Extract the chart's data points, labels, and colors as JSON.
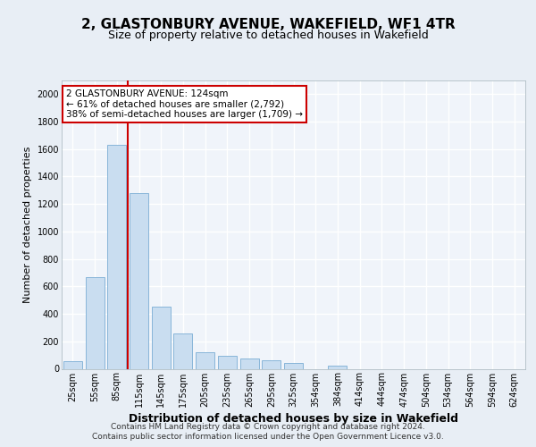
{
  "title": "2, GLASTONBURY AVENUE, WAKEFIELD, WF1 4TR",
  "subtitle": "Size of property relative to detached houses in Wakefield",
  "xlabel": "Distribution of detached houses by size in Wakefield",
  "ylabel": "Number of detached properties",
  "categories": [
    "25sqm",
    "55sqm",
    "85sqm",
    "115sqm",
    "145sqm",
    "175sqm",
    "205sqm",
    "235sqm",
    "265sqm",
    "295sqm",
    "325sqm",
    "354sqm",
    "384sqm",
    "414sqm",
    "444sqm",
    "474sqm",
    "504sqm",
    "534sqm",
    "564sqm",
    "594sqm",
    "624sqm"
  ],
  "values": [
    55,
    670,
    1630,
    1280,
    450,
    255,
    120,
    95,
    75,
    60,
    40,
    0,
    25,
    0,
    0,
    0,
    0,
    0,
    0,
    0,
    0
  ],
  "bar_color": "#c9ddf0",
  "bar_edge_color": "#7aadd4",
  "vline_x": 2.5,
  "vline_color": "#cc0000",
  "annotation_text": "2 GLASTONBURY AVENUE: 124sqm\n← 61% of detached houses are smaller (2,792)\n38% of semi-detached houses are larger (1,709) →",
  "annotation_box_facecolor": "#ffffff",
  "annotation_box_edge": "#cc0000",
  "ylim": [
    0,
    2100
  ],
  "yticks": [
    0,
    200,
    400,
    600,
    800,
    1000,
    1200,
    1400,
    1600,
    1800,
    2000
  ],
  "footer_line1": "Contains HM Land Registry data © Crown copyright and database right 2024.",
  "footer_line2": "Contains public sector information licensed under the Open Government Licence v3.0.",
  "bg_color": "#e8eef5",
  "plot_bg_color": "#f0f4fa",
  "grid_color": "#ffffff",
  "title_fontsize": 11,
  "subtitle_fontsize": 9,
  "ylabel_fontsize": 8,
  "xlabel_fontsize": 9,
  "tick_fontsize": 7,
  "annotation_fontsize": 7.5,
  "footer_fontsize": 6.5
}
